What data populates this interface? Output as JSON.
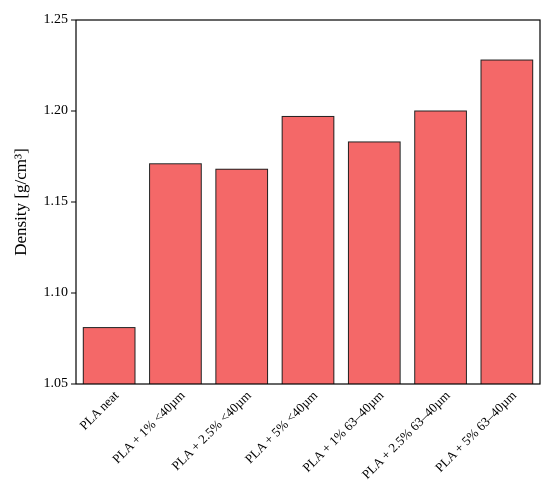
{
  "chart_data": {
    "type": "bar",
    "y_label": "Density [g/cm³]",
    "categories": [
      "PLA neat",
      "PLA + 1% <40µm",
      "PLA + 2.5% <40µm",
      "PLA + 5% <40µm",
      "PLA + 1% 63–40µm",
      "PLA + 2.5% 63–40µm",
      "PLA + 5% 63–40µm"
    ],
    "values": [
      1.081,
      1.171,
      1.168,
      1.197,
      1.183,
      1.2,
      1.228
    ],
    "color": "#f46868",
    "ylim": [
      1.05,
      1.25
    ],
    "yticks": [
      1.05,
      {
        "value": 1.1,
        "label": "1.10"
      },
      1.15,
      {
        "value": 1.2,
        "label": "1.20"
      },
      1.25
    ]
  }
}
